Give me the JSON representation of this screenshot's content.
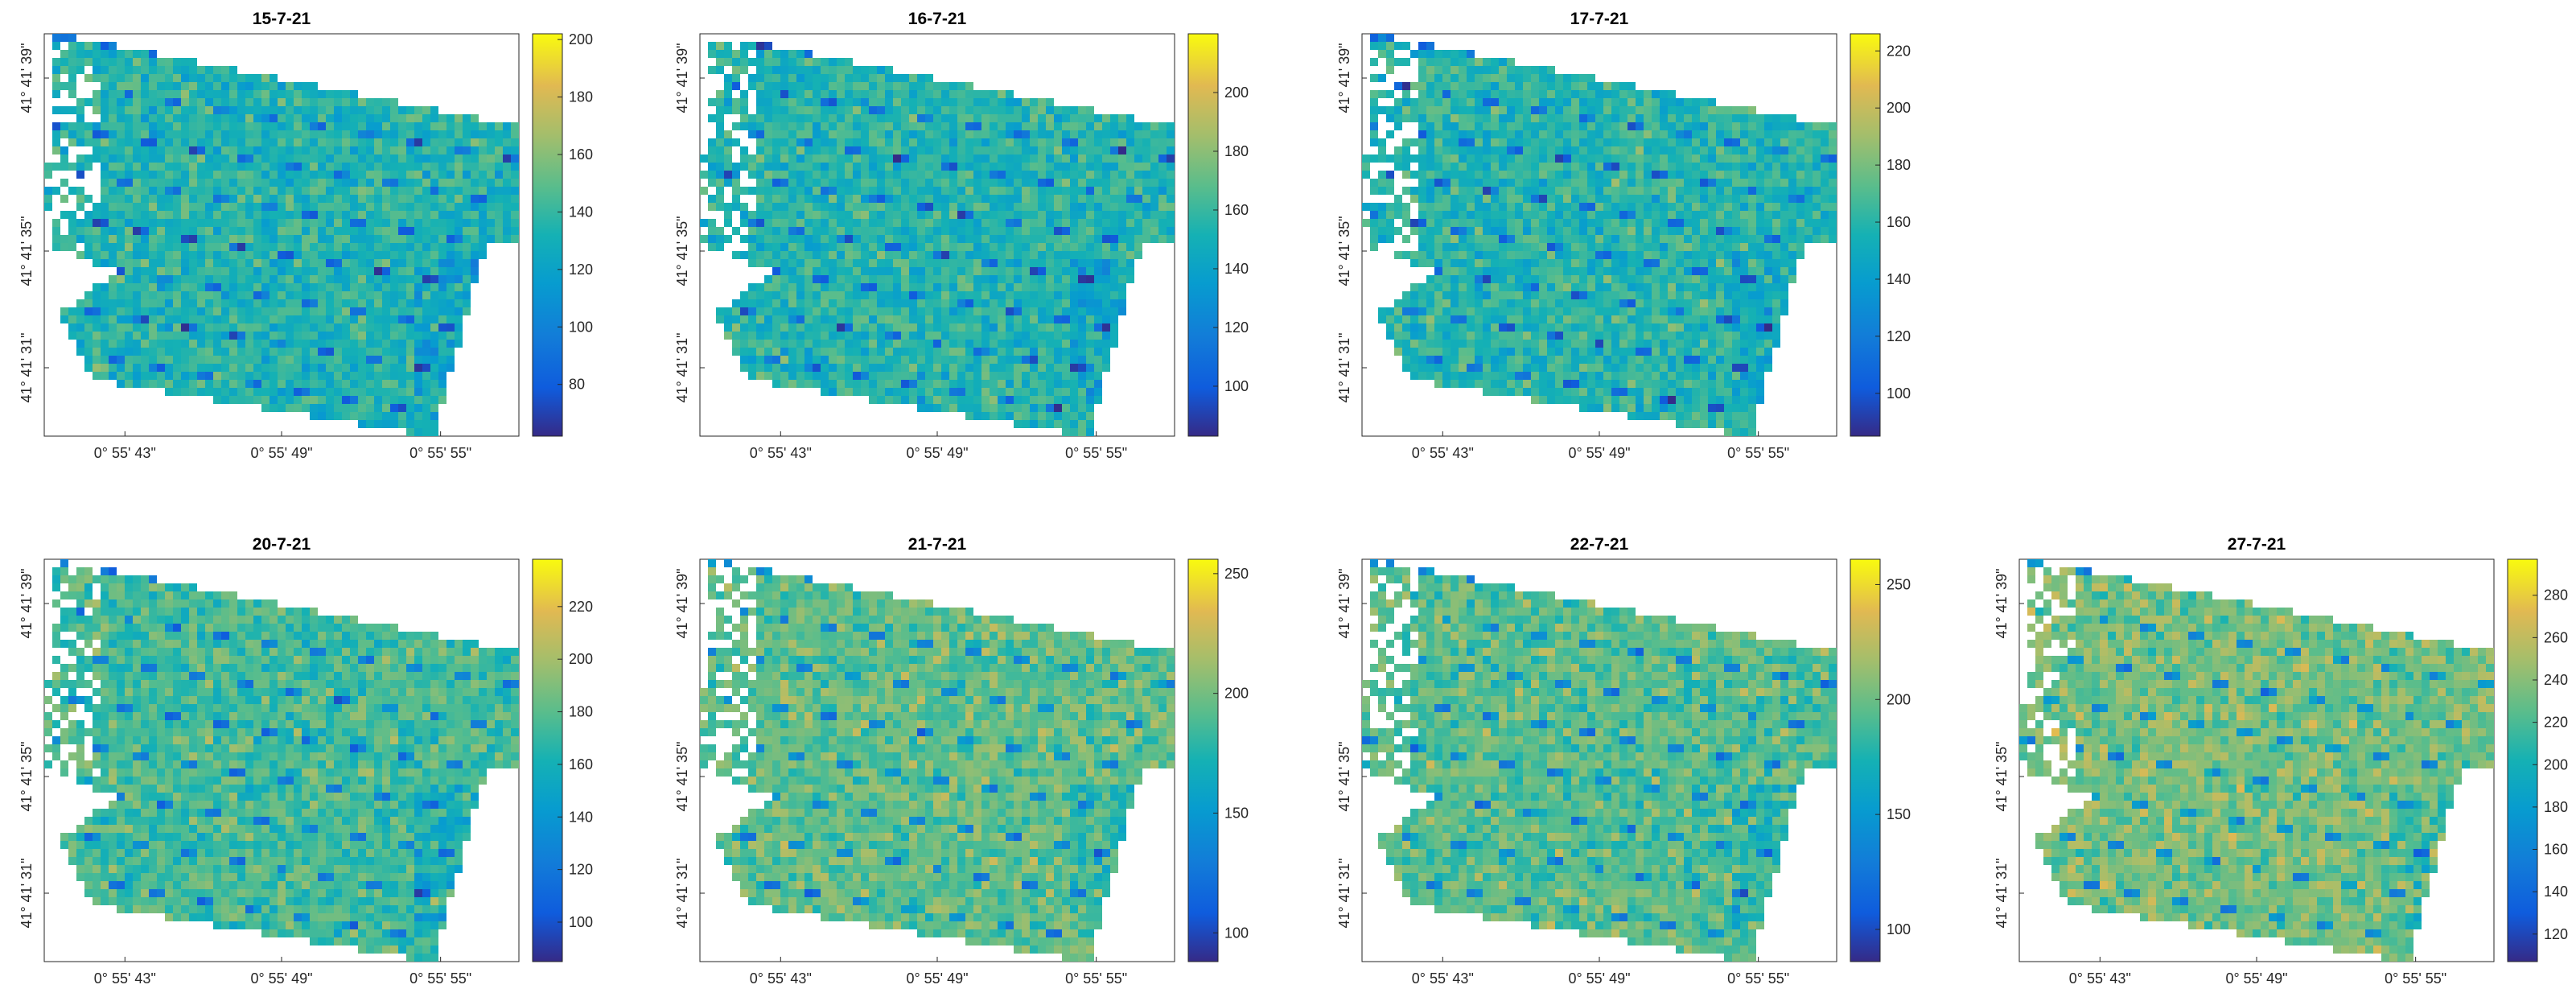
{
  "figure": {
    "panels": [
      {
        "title": "15-7-21",
        "cbar_ticks": [
          "80",
          "100",
          "120",
          "140",
          "160",
          "180",
          "200"
        ],
        "clim": [
          62,
          202
        ]
      },
      {
        "title": "16-7-21",
        "cbar_ticks": [
          "100",
          "120",
          "140",
          "160",
          "180",
          "200"
        ],
        "clim": [
          83,
          220
        ]
      },
      {
        "title": "17-7-21",
        "cbar_ticks": [
          "100",
          "120",
          "140",
          "160",
          "180",
          "200",
          "220"
        ],
        "clim": [
          85,
          226
        ]
      },
      {
        "title": "20-7-21",
        "cbar_ticks": [
          "100",
          "120",
          "140",
          "160",
          "180",
          "200",
          "220"
        ],
        "clim": [
          85,
          238
        ]
      },
      {
        "title": "21-7-21",
        "cbar_ticks": [
          "100",
          "150",
          "200",
          "250"
        ],
        "clim": [
          88,
          256
        ]
      },
      {
        "title": "22-7-21",
        "cbar_ticks": [
          "100",
          "150",
          "200",
          "250"
        ],
        "clim": [
          86,
          261
        ]
      },
      {
        "title": "27-7-21",
        "cbar_ticks": [
          "120",
          "140",
          "160",
          "180",
          "200",
          "220",
          "240",
          "260",
          "280"
        ],
        "clim": [
          107,
          297
        ]
      }
    ],
    "x_ticks": [
      "0° 55' 43\"",
      "0° 55' 49\"",
      "0° 55' 55\""
    ],
    "y_ticks": [
      "41° 41' 39\"",
      "41° 41' 35\"",
      "41° 41' 31\""
    ],
    "colormap": "parula"
  },
  "chart_data": [
    {
      "type": "heatmap",
      "title": "15-7-21",
      "x_ticks": [
        "0° 55' 43\"",
        "0° 55' 49\"",
        "0° 55' 55\""
      ],
      "y_ticks": [
        "41° 41' 39\"",
        "41° 41' 35\"",
        "41° 41' 31\""
      ],
      "colorbar_range": [
        62,
        202
      ],
      "colorbar_ticks": [
        80,
        100,
        120,
        140,
        160,
        180,
        200
      ],
      "typical_value": 135
    },
    {
      "type": "heatmap",
      "title": "16-7-21",
      "x_ticks": [
        "0° 55' 43\"",
        "0° 55' 49\"",
        "0° 55' 55\""
      ],
      "y_ticks": [
        "41° 41' 39\"",
        "41° 41' 35\"",
        "41° 41' 31\""
      ],
      "colorbar_range": [
        83,
        220
      ],
      "colorbar_ticks": [
        100,
        120,
        140,
        160,
        180,
        200
      ],
      "typical_value": 155
    },
    {
      "type": "heatmap",
      "title": "17-7-21",
      "x_ticks": [
        "0° 55' 43\"",
        "0° 55' 49\"",
        "0° 55' 55\""
      ],
      "y_ticks": [
        "41° 41' 39\"",
        "41° 41' 35\"",
        "41° 41' 31\""
      ],
      "colorbar_range": [
        85,
        226
      ],
      "colorbar_ticks": [
        100,
        120,
        140,
        160,
        180,
        200,
        220
      ],
      "typical_value": 160
    },
    {
      "type": "heatmap",
      "title": "20-7-21",
      "x_ticks": [
        "0° 55' 43\"",
        "0° 55' 49\"",
        "0° 55' 55\""
      ],
      "y_ticks": [
        "41° 41' 39\"",
        "41° 41' 35\"",
        "41° 41' 31\""
      ],
      "colorbar_range": [
        85,
        238
      ],
      "colorbar_ticks": [
        100,
        120,
        140,
        160,
        180,
        200,
        220
      ],
      "typical_value": 175
    },
    {
      "type": "heatmap",
      "title": "21-7-21",
      "x_ticks": [
        "0° 55' 43\"",
        "0° 55' 49\"",
        "0° 55' 55\""
      ],
      "y_ticks": [
        "41° 41' 39\"",
        "41° 41' 35\"",
        "41° 41' 31\""
      ],
      "colorbar_range": [
        88,
        256
      ],
      "colorbar_ticks": [
        100,
        150,
        200,
        250
      ],
      "typical_value": 195
    },
    {
      "type": "heatmap",
      "title": "22-7-21",
      "x_ticks": [
        "0° 55' 43\"",
        "0° 55' 49\"",
        "0° 55' 55\""
      ],
      "y_ticks": [
        "41° 41' 39\"",
        "41° 41' 35\"",
        "41° 41' 31\""
      ],
      "colorbar_range": [
        86,
        261
      ],
      "colorbar_ticks": [
        100,
        150,
        200,
        250
      ],
      "typical_value": 195
    },
    {
      "type": "heatmap",
      "title": "27-7-21",
      "x_ticks": [
        "0° 55' 43\"",
        "0° 55' 49\"",
        "0° 55' 55\""
      ],
      "y_ticks": [
        "41° 41' 39\"",
        "41° 41' 35\"",
        "41° 41' 31\""
      ],
      "colorbar_range": [
        107,
        297
      ],
      "colorbar_ticks": [
        120,
        140,
        160,
        180,
        200,
        220,
        240,
        260,
        280
      ],
      "typical_value": 235
    }
  ]
}
